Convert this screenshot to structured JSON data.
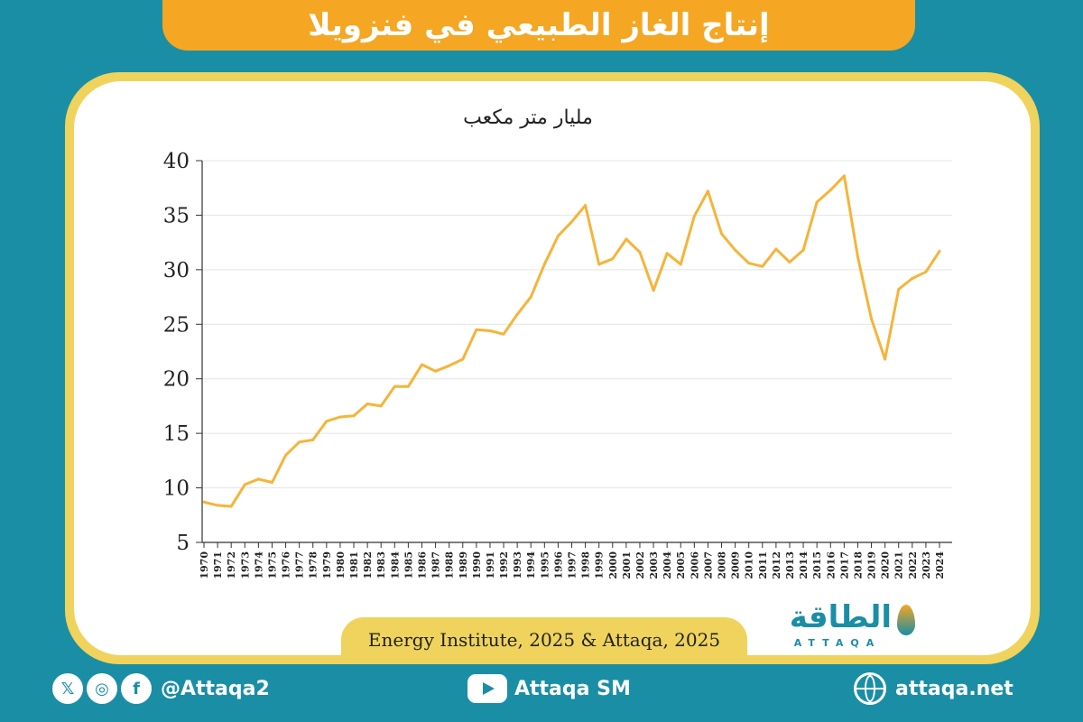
{
  "header": {
    "title": "إنتاج الغاز الطبيعي في فنزويلا"
  },
  "chart_data": {
    "type": "line",
    "title": "",
    "unit_label": "مليار متر مكعب",
    "xlabel": "",
    "ylabel": "",
    "ylim": [
      5,
      40
    ],
    "yticks": [
      5,
      10,
      15,
      20,
      25,
      30,
      35,
      40
    ],
    "grid": true,
    "color": "#f5b43a",
    "categories": [
      "1970",
      "1971",
      "1972",
      "1973",
      "1974",
      "1975",
      "1976",
      "1977",
      "1978",
      "1979",
      "1980",
      "1981",
      "1982",
      "1983",
      "1984",
      "1985",
      "1986",
      "1987",
      "1988",
      "1989",
      "1990",
      "1991",
      "1992",
      "1993",
      "1994",
      "1995",
      "1996",
      "1997",
      "1998",
      "1999",
      "2000",
      "2001",
      "2002",
      "2003",
      "2004",
      "2005",
      "2006",
      "2007",
      "2008",
      "2009",
      "2010",
      "2011",
      "2012",
      "2013",
      "2014",
      "2015",
      "2016",
      "2017",
      "2018",
      "2019",
      "2020",
      "2021",
      "2022",
      "2023",
      "2024"
    ],
    "values": [
      8.7,
      8.4,
      8.3,
      10.3,
      10.8,
      10.5,
      13.0,
      14.2,
      14.4,
      16.1,
      16.5,
      16.6,
      17.7,
      17.5,
      19.3,
      19.3,
      21.3,
      20.7,
      21.2,
      21.8,
      24.5,
      24.4,
      24.1,
      25.9,
      27.5,
      30.5,
      33.1,
      34.4,
      35.9,
      30.5,
      31.0,
      32.8,
      31.6,
      28.1,
      31.5,
      30.5,
      34.9,
      37.2,
      33.3,
      31.8,
      30.6,
      30.3,
      31.9,
      30.7,
      31.8,
      36.2,
      37.3,
      38.6,
      31.2,
      25.5,
      21.8,
      28.2,
      29.2,
      29.8,
      31.7
    ]
  },
  "source": "Energy Institute, 2025 & Attaqa, 2025",
  "logo": {
    "ar": "الطاقة",
    "en": "ATTAQA"
  },
  "footer": {
    "social_handle": "@Attaqa2",
    "youtube": "Attaqa SM",
    "website": "attaqa.net",
    "x_icon": "𝕏",
    "instagram_icon": "◎",
    "facebook_icon": "f"
  }
}
